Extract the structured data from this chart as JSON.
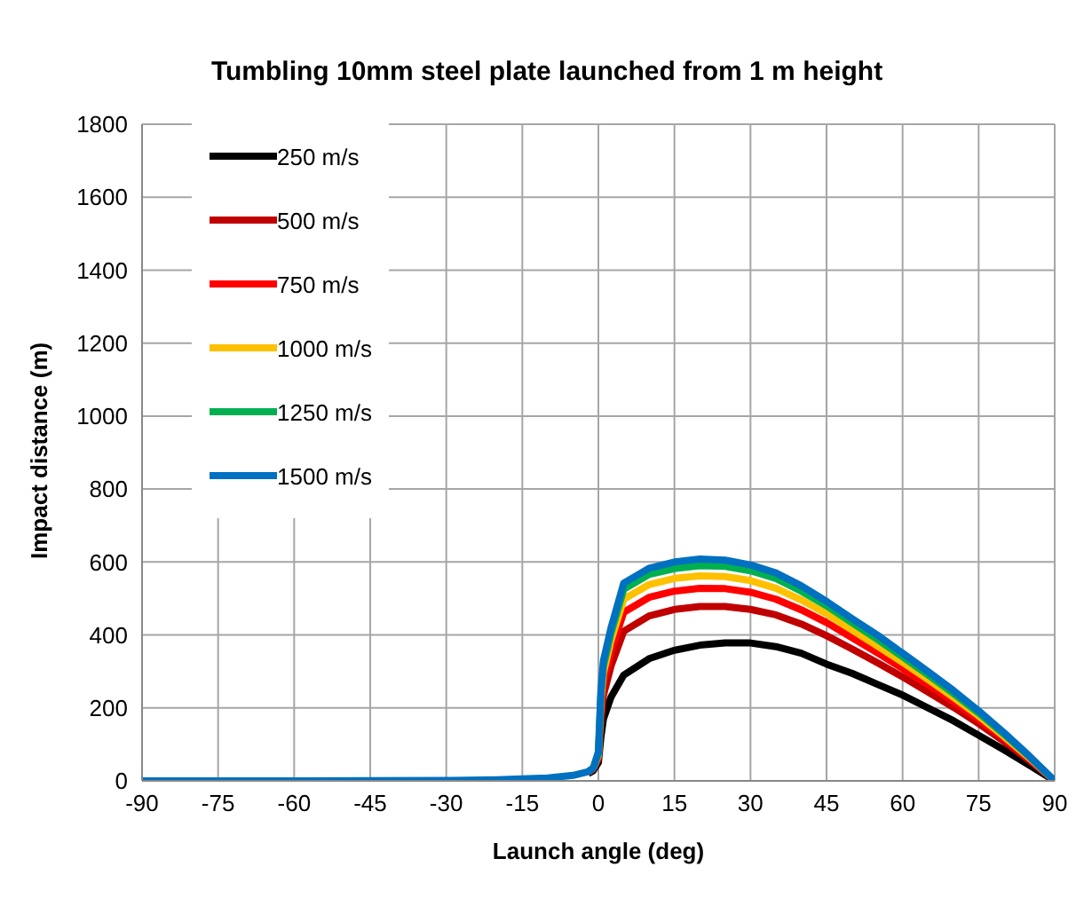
{
  "chart_data": {
    "type": "line",
    "title": "Tumbling 10mm steel plate launched from 1 m height",
    "xlabel": "Launch angle (deg)",
    "ylabel": "Impact distance (m)",
    "x": [
      -90,
      -60,
      -30,
      -20,
      -10,
      -5,
      -2,
      -1,
      0,
      0.5,
      1,
      2.5,
      5,
      10,
      15,
      20,
      25,
      30,
      35,
      40,
      45,
      50,
      55,
      60,
      65,
      70,
      75,
      80,
      85,
      90
    ],
    "series": [
      {
        "name": "250 m/s",
        "color": "#000000",
        "values": [
          null,
          null,
          null,
          null,
          null,
          null,
          20,
          28,
          50,
          120,
          170,
          230,
          290,
          335,
          358,
          372,
          378,
          378,
          368,
          350,
          320,
          295,
          265,
          235,
          200,
          165,
          125,
          85,
          43,
          0
        ]
      },
      {
        "name": "500 m/s",
        "color": "#c00000",
        "values": [
          null,
          null,
          null,
          null,
          null,
          null,
          23,
          32,
          60,
          170,
          235,
          315,
          410,
          452,
          470,
          478,
          478,
          470,
          455,
          430,
          398,
          362,
          324,
          285,
          244,
          202,
          157,
          108,
          56,
          0
        ]
      },
      {
        "name": "750 m/s",
        "color": "#ff0000",
        "values": [
          null,
          null,
          null,
          null,
          null,
          null,
          25,
          35,
          65,
          200,
          270,
          355,
          462,
          503,
          520,
          528,
          527,
          517,
          498,
          469,
          434,
          393,
          351,
          308,
          264,
          218,
          169,
          116,
          60,
          0
        ]
      },
      {
        "name": "1000 m/s",
        "color": "#ffc000",
        "values": [
          null,
          null,
          null,
          null,
          null,
          null,
          null,
          35,
          70,
          220,
          295,
          385,
          498,
          538,
          555,
          562,
          560,
          549,
          528,
          496,
          458,
          414,
          370,
          325,
          278,
          229,
          178,
          122,
          63,
          0
        ]
      },
      {
        "name": "1250 m/s",
        "color": "#00b050",
        "values": [
          null,
          null,
          null,
          null,
          null,
          null,
          25,
          35,
          75,
          235,
          315,
          405,
          525,
          566,
          582,
          590,
          588,
          576,
          555,
          520,
          480,
          434,
          388,
          340,
          291,
          240,
          186,
          128,
          66,
          0
        ]
      },
      {
        "name": "1500 m/s",
        "color": "#0070c0",
        "values": [
          0,
          0,
          1,
          3,
          8,
          15,
          25,
          35,
          80,
          250,
          330,
          420,
          542,
          583,
          600,
          608,
          605,
          592,
          570,
          535,
          492,
          445,
          400,
          350,
          300,
          248,
          192,
          132,
          68,
          0
        ]
      }
    ],
    "xlim": [
      -90,
      90
    ],
    "xticks": [
      -90,
      -75,
      -60,
      -45,
      -30,
      -15,
      0,
      15,
      30,
      45,
      60,
      75,
      90
    ],
    "ylim": [
      0,
      1800
    ],
    "yticks": [
      0,
      200,
      400,
      600,
      800,
      1000,
      1200,
      1400,
      1600,
      1800
    ],
    "grid": true,
    "legend": "top left",
    "marker": "none",
    "line_style": "solid"
  }
}
